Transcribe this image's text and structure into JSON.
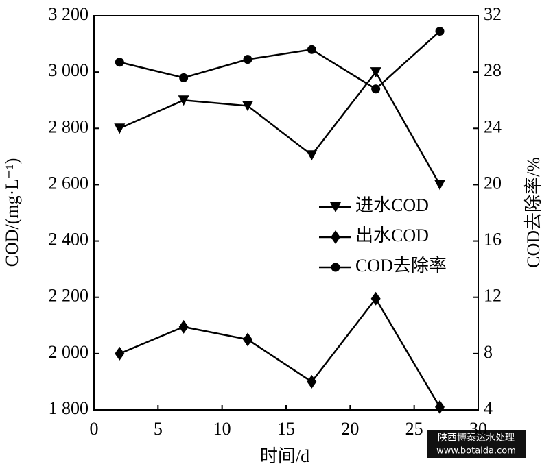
{
  "chart_data": {
    "type": "line",
    "xlabel": "时间/d",
    "ylabel": "COD/(mg·L⁻¹)",
    "y2label": "COD去除率/%",
    "x": [
      2,
      7,
      12,
      17,
      22,
      27
    ],
    "series": [
      {
        "name": "进水COD",
        "color": "#000000",
        "marker": "triangle-down",
        "values": [
          2800,
          2900,
          2880,
          2705,
          3000,
          2600
        ]
      },
      {
        "name": "出水COD",
        "color": "#000000",
        "marker": "diamond",
        "values": [
          2000,
          2095,
          2050,
          1900,
          2195,
          1810
        ]
      },
      {
        "name": "COD去除率",
        "color": "#000000",
        "marker": "circle",
        "axis": "y2",
        "values": [
          28.7,
          27.6,
          28.9,
          29.6,
          26.8,
          30.9
        ]
      }
    ],
    "xlim": [
      0,
      30
    ],
    "xticks": [
      0,
      5,
      10,
      15,
      20,
      25,
      30
    ],
    "ylim": [
      1800,
      3200
    ],
    "yticks": [
      {
        "value": 1800,
        "label": "1 800"
      },
      {
        "value": 2000,
        "label": "2 000"
      },
      {
        "value": 2200,
        "label": "2 200"
      },
      {
        "value": 2400,
        "label": "2 400"
      },
      {
        "value": 2600,
        "label": "2 600"
      },
      {
        "value": 2800,
        "label": "2 800"
      },
      {
        "value": 3000,
        "label": "3 000"
      },
      {
        "value": 3200,
        "label": "3 200"
      }
    ],
    "y2lim": [
      4,
      32
    ],
    "y2ticks": [
      4,
      8,
      12,
      16,
      20,
      24,
      28,
      32
    ],
    "grid": false,
    "legend": "right"
  },
  "watermark": {
    "name": "陕西博泰达水处理",
    "url": "www.botaida.com"
  }
}
